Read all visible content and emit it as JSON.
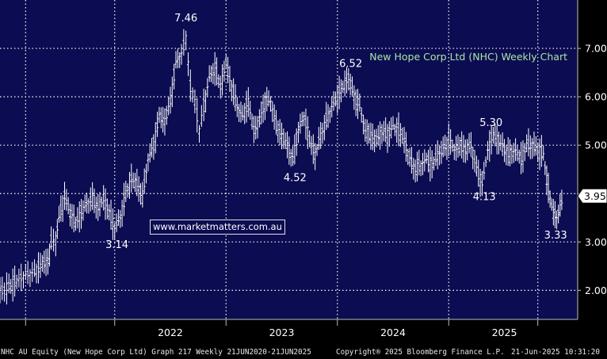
{
  "chart_data": {
    "type": "line",
    "title": "New Hope Corp Ltd (NHC) Weekly Chart",
    "ylim": [
      1.4,
      8.0
    ],
    "xlim": [
      2020.47,
      2025.53
    ],
    "yticks": [
      2.0,
      3.0,
      4.0,
      5.0,
      6.0,
      7.0
    ],
    "ytick_labels": [
      "2.00",
      "3.00",
      "4.00",
      "5.00",
      "6.00",
      "7.00"
    ],
    "xtick_labels": [
      {
        "label": "2022",
        "x": 2022.0
      },
      {
        "label": "2023",
        "x": 2023.0
      },
      {
        "label": "2024",
        "x": 2024.0
      },
      {
        "label": "2025",
        "x": 2025.0
      }
    ],
    "year_separators": [
      2020.7,
      2021.5,
      2022.5,
      2023.5,
      2024.5,
      2025.3
    ],
    "grid": true,
    "last_price": {
      "label": "3.95",
      "value": 3.95
    },
    "series": [
      {
        "values": [
          {
            "x": 2020.47,
            "y": 1.97
          },
          {
            "x": 2020.55,
            "y": 2.08
          },
          {
            "x": 2020.62,
            "y": 2.2
          },
          {
            "x": 2020.7,
            "y": 2.32
          },
          {
            "x": 2020.78,
            "y": 2.38
          },
          {
            "x": 2020.85,
            "y": 2.55
          },
          {
            "x": 2020.9,
            "y": 2.6
          },
          {
            "x": 2020.93,
            "y": 3.0
          },
          {
            "x": 2020.97,
            "y": 3.05
          },
          {
            "x": 2021.0,
            "y": 3.5
          },
          {
            "x": 2021.05,
            "y": 3.95
          },
          {
            "x": 2021.1,
            "y": 3.6
          },
          {
            "x": 2021.15,
            "y": 3.4
          },
          {
            "x": 2021.2,
            "y": 3.6
          },
          {
            "x": 2021.25,
            "y": 3.8
          },
          {
            "x": 2021.3,
            "y": 3.9
          },
          {
            "x": 2021.35,
            "y": 3.7
          },
          {
            "x": 2021.4,
            "y": 3.9
          },
          {
            "x": 2021.45,
            "y": 3.6
          },
          {
            "x": 2021.5,
            "y": 3.3
          },
          {
            "x": 2021.55,
            "y": 3.5
          },
          {
            "x": 2021.6,
            "y": 4.0
          },
          {
            "x": 2021.65,
            "y": 4.3
          },
          {
            "x": 2021.7,
            "y": 4.2
          },
          {
            "x": 2021.75,
            "y": 3.95
          },
          {
            "x": 2021.8,
            "y": 4.7
          },
          {
            "x": 2021.85,
            "y": 5.0
          },
          {
            "x": 2021.9,
            "y": 5.6
          },
          {
            "x": 2021.95,
            "y": 5.5
          },
          {
            "x": 2022.0,
            "y": 5.9
          },
          {
            "x": 2022.05,
            "y": 6.7
          },
          {
            "x": 2022.1,
            "y": 6.9
          },
          {
            "x": 2022.14,
            "y": 7.2
          },
          {
            "x": 2022.18,
            "y": 6.2
          },
          {
            "x": 2022.22,
            "y": 5.9
          },
          {
            "x": 2022.26,
            "y": 5.3
          },
          {
            "x": 2022.3,
            "y": 5.8
          },
          {
            "x": 2022.35,
            "y": 6.4
          },
          {
            "x": 2022.4,
            "y": 6.6
          },
          {
            "x": 2022.45,
            "y": 6.2
          },
          {
            "x": 2022.5,
            "y": 6.7
          },
          {
            "x": 2022.55,
            "y": 6.2
          },
          {
            "x": 2022.6,
            "y": 5.8
          },
          {
            "x": 2022.65,
            "y": 5.6
          },
          {
            "x": 2022.7,
            "y": 5.9
          },
          {
            "x": 2022.75,
            "y": 5.3
          },
          {
            "x": 2022.8,
            "y": 5.5
          },
          {
            "x": 2022.85,
            "y": 5.9
          },
          {
            "x": 2022.9,
            "y": 5.9
          },
          {
            "x": 2022.95,
            "y": 5.4
          },
          {
            "x": 2023.0,
            "y": 5.2
          },
          {
            "x": 2023.05,
            "y": 5.0
          },
          {
            "x": 2023.1,
            "y": 4.7
          },
          {
            "x": 2023.15,
            "y": 5.3
          },
          {
            "x": 2023.2,
            "y": 5.6
          },
          {
            "x": 2023.25,
            "y": 5.1
          },
          {
            "x": 2023.3,
            "y": 4.8
          },
          {
            "x": 2023.35,
            "y": 5.2
          },
          {
            "x": 2023.4,
            "y": 5.5
          },
          {
            "x": 2023.45,
            "y": 5.8
          },
          {
            "x": 2023.5,
            "y": 6.0
          },
          {
            "x": 2023.55,
            "y": 6.2
          },
          {
            "x": 2023.6,
            "y": 6.4
          },
          {
            "x": 2023.65,
            "y": 6.0
          },
          {
            "x": 2023.7,
            "y": 5.8
          },
          {
            "x": 2023.75,
            "y": 5.3
          },
          {
            "x": 2023.8,
            "y": 5.2
          },
          {
            "x": 2023.85,
            "y": 5.1
          },
          {
            "x": 2023.9,
            "y": 5.3
          },
          {
            "x": 2023.95,
            "y": 5.2
          },
          {
            "x": 2024.0,
            "y": 5.4
          },
          {
            "x": 2024.05,
            "y": 5.3
          },
          {
            "x": 2024.1,
            "y": 5.1
          },
          {
            "x": 2024.15,
            "y": 4.7
          },
          {
            "x": 2024.2,
            "y": 4.5
          },
          {
            "x": 2024.25,
            "y": 4.6
          },
          {
            "x": 2024.3,
            "y": 4.7
          },
          {
            "x": 2024.35,
            "y": 4.6
          },
          {
            "x": 2024.4,
            "y": 4.8
          },
          {
            "x": 2024.45,
            "y": 4.9
          },
          {
            "x": 2024.5,
            "y": 5.1
          },
          {
            "x": 2024.55,
            "y": 4.9
          },
          {
            "x": 2024.6,
            "y": 5.0
          },
          {
            "x": 2024.65,
            "y": 4.9
          },
          {
            "x": 2024.7,
            "y": 5.0
          },
          {
            "x": 2024.75,
            "y": 4.5
          },
          {
            "x": 2024.8,
            "y": 4.2
          },
          {
            "x": 2024.85,
            "y": 4.9
          },
          {
            "x": 2024.9,
            "y": 5.2
          },
          {
            "x": 2024.95,
            "y": 5.1
          },
          {
            "x": 2025.0,
            "y": 4.9
          },
          {
            "x": 2025.05,
            "y": 4.8
          },
          {
            "x": 2025.1,
            "y": 4.9
          },
          {
            "x": 2025.15,
            "y": 4.7
          },
          {
            "x": 2025.2,
            "y": 5.0
          },
          {
            "x": 2025.25,
            "y": 5.0
          },
          {
            "x": 2025.3,
            "y": 4.9
          },
          {
            "x": 2025.35,
            "y": 4.8
          },
          {
            "x": 2025.38,
            "y": 4.3
          },
          {
            "x": 2025.41,
            "y": 3.9
          },
          {
            "x": 2025.44,
            "y": 3.6
          },
          {
            "x": 2025.47,
            "y": 3.5
          },
          {
            "x": 2025.5,
            "y": 3.7
          },
          {
            "x": 2025.53,
            "y": 3.95
          }
        ]
      }
    ],
    "annotations": [
      {
        "text": "7.46",
        "x": 2022.14,
        "y": 7.46
      },
      {
        "text": "3.14",
        "x": 2021.52,
        "y": 3.14
      },
      {
        "text": "4.52",
        "x": 2023.12,
        "y": 4.52
      },
      {
        "text": "6.52",
        "x": 2023.62,
        "y": 6.52
      },
      {
        "text": "5.30",
        "x": 2024.88,
        "y": 5.3
      },
      {
        "text": "4.13",
        "x": 2024.82,
        "y": 4.13
      },
      {
        "text": "3.33",
        "x": 2025.46,
        "y": 3.33
      }
    ]
  },
  "watermark": "www.marketmatters.com.au",
  "footer": {
    "security": "NHC AU Equity (New Hope Corp Ltd) Graph 217  Weekly 21JUN2020-21JUN2025",
    "copyright": "Copyright® 2025 Bloomberg Finance L.P.",
    "timestamp": "21-Jun-2025 10:31:20"
  },
  "colors": {
    "background": "#0c0c52",
    "price_bars": "#ffffff",
    "grid": "#ffffff",
    "title": "#a8e6a3",
    "text": "#ffffff"
  }
}
